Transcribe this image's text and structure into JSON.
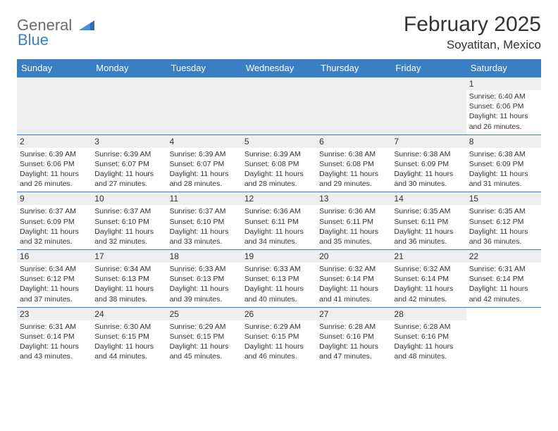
{
  "logo": {
    "word1": "General",
    "word2": "Blue"
  },
  "title": "February 2025",
  "location": "Soyatitan, Mexico",
  "colors": {
    "header_bg": "#3a7fc4",
    "header_text": "#ffffff",
    "daynum_bg": "#eeeeee",
    "cell_border": "#3a7fc4",
    "text": "#333333",
    "logo_gray": "#6b6b6b",
    "logo_blue": "#3a7fc4"
  },
  "day_headers": [
    "Sunday",
    "Monday",
    "Tuesday",
    "Wednesday",
    "Thursday",
    "Friday",
    "Saturday"
  ],
  "weeks": [
    [
      null,
      null,
      null,
      null,
      null,
      null,
      {
        "n": "1",
        "sunrise": "Sunrise: 6:40 AM",
        "sunset": "Sunset: 6:06 PM",
        "daylight": "Daylight: 11 hours and 26 minutes."
      }
    ],
    [
      {
        "n": "2",
        "sunrise": "Sunrise: 6:39 AM",
        "sunset": "Sunset: 6:06 PM",
        "daylight": "Daylight: 11 hours and 26 minutes."
      },
      {
        "n": "3",
        "sunrise": "Sunrise: 6:39 AM",
        "sunset": "Sunset: 6:07 PM",
        "daylight": "Daylight: 11 hours and 27 minutes."
      },
      {
        "n": "4",
        "sunrise": "Sunrise: 6:39 AM",
        "sunset": "Sunset: 6:07 PM",
        "daylight": "Daylight: 11 hours and 28 minutes."
      },
      {
        "n": "5",
        "sunrise": "Sunrise: 6:39 AM",
        "sunset": "Sunset: 6:08 PM",
        "daylight": "Daylight: 11 hours and 28 minutes."
      },
      {
        "n": "6",
        "sunrise": "Sunrise: 6:38 AM",
        "sunset": "Sunset: 6:08 PM",
        "daylight": "Daylight: 11 hours and 29 minutes."
      },
      {
        "n": "7",
        "sunrise": "Sunrise: 6:38 AM",
        "sunset": "Sunset: 6:09 PM",
        "daylight": "Daylight: 11 hours and 30 minutes."
      },
      {
        "n": "8",
        "sunrise": "Sunrise: 6:38 AM",
        "sunset": "Sunset: 6:09 PM",
        "daylight": "Daylight: 11 hours and 31 minutes."
      }
    ],
    [
      {
        "n": "9",
        "sunrise": "Sunrise: 6:37 AM",
        "sunset": "Sunset: 6:09 PM",
        "daylight": "Daylight: 11 hours and 32 minutes."
      },
      {
        "n": "10",
        "sunrise": "Sunrise: 6:37 AM",
        "sunset": "Sunset: 6:10 PM",
        "daylight": "Daylight: 11 hours and 32 minutes."
      },
      {
        "n": "11",
        "sunrise": "Sunrise: 6:37 AM",
        "sunset": "Sunset: 6:10 PM",
        "daylight": "Daylight: 11 hours and 33 minutes."
      },
      {
        "n": "12",
        "sunrise": "Sunrise: 6:36 AM",
        "sunset": "Sunset: 6:11 PM",
        "daylight": "Daylight: 11 hours and 34 minutes."
      },
      {
        "n": "13",
        "sunrise": "Sunrise: 6:36 AM",
        "sunset": "Sunset: 6:11 PM",
        "daylight": "Daylight: 11 hours and 35 minutes."
      },
      {
        "n": "14",
        "sunrise": "Sunrise: 6:35 AM",
        "sunset": "Sunset: 6:11 PM",
        "daylight": "Daylight: 11 hours and 36 minutes."
      },
      {
        "n": "15",
        "sunrise": "Sunrise: 6:35 AM",
        "sunset": "Sunset: 6:12 PM",
        "daylight": "Daylight: 11 hours and 36 minutes."
      }
    ],
    [
      {
        "n": "16",
        "sunrise": "Sunrise: 6:34 AM",
        "sunset": "Sunset: 6:12 PM",
        "daylight": "Daylight: 11 hours and 37 minutes."
      },
      {
        "n": "17",
        "sunrise": "Sunrise: 6:34 AM",
        "sunset": "Sunset: 6:13 PM",
        "daylight": "Daylight: 11 hours and 38 minutes."
      },
      {
        "n": "18",
        "sunrise": "Sunrise: 6:33 AM",
        "sunset": "Sunset: 6:13 PM",
        "daylight": "Daylight: 11 hours and 39 minutes."
      },
      {
        "n": "19",
        "sunrise": "Sunrise: 6:33 AM",
        "sunset": "Sunset: 6:13 PM",
        "daylight": "Daylight: 11 hours and 40 minutes."
      },
      {
        "n": "20",
        "sunrise": "Sunrise: 6:32 AM",
        "sunset": "Sunset: 6:14 PM",
        "daylight": "Daylight: 11 hours and 41 minutes."
      },
      {
        "n": "21",
        "sunrise": "Sunrise: 6:32 AM",
        "sunset": "Sunset: 6:14 PM",
        "daylight": "Daylight: 11 hours and 42 minutes."
      },
      {
        "n": "22",
        "sunrise": "Sunrise: 6:31 AM",
        "sunset": "Sunset: 6:14 PM",
        "daylight": "Daylight: 11 hours and 42 minutes."
      }
    ],
    [
      {
        "n": "23",
        "sunrise": "Sunrise: 6:31 AM",
        "sunset": "Sunset: 6:14 PM",
        "daylight": "Daylight: 11 hours and 43 minutes."
      },
      {
        "n": "24",
        "sunrise": "Sunrise: 6:30 AM",
        "sunset": "Sunset: 6:15 PM",
        "daylight": "Daylight: 11 hours and 44 minutes."
      },
      {
        "n": "25",
        "sunrise": "Sunrise: 6:29 AM",
        "sunset": "Sunset: 6:15 PM",
        "daylight": "Daylight: 11 hours and 45 minutes."
      },
      {
        "n": "26",
        "sunrise": "Sunrise: 6:29 AM",
        "sunset": "Sunset: 6:15 PM",
        "daylight": "Daylight: 11 hours and 46 minutes."
      },
      {
        "n": "27",
        "sunrise": "Sunrise: 6:28 AM",
        "sunset": "Sunset: 6:16 PM",
        "daylight": "Daylight: 11 hours and 47 minutes."
      },
      {
        "n": "28",
        "sunrise": "Sunrise: 6:28 AM",
        "sunset": "Sunset: 6:16 PM",
        "daylight": "Daylight: 11 hours and 48 minutes."
      },
      null
    ]
  ]
}
